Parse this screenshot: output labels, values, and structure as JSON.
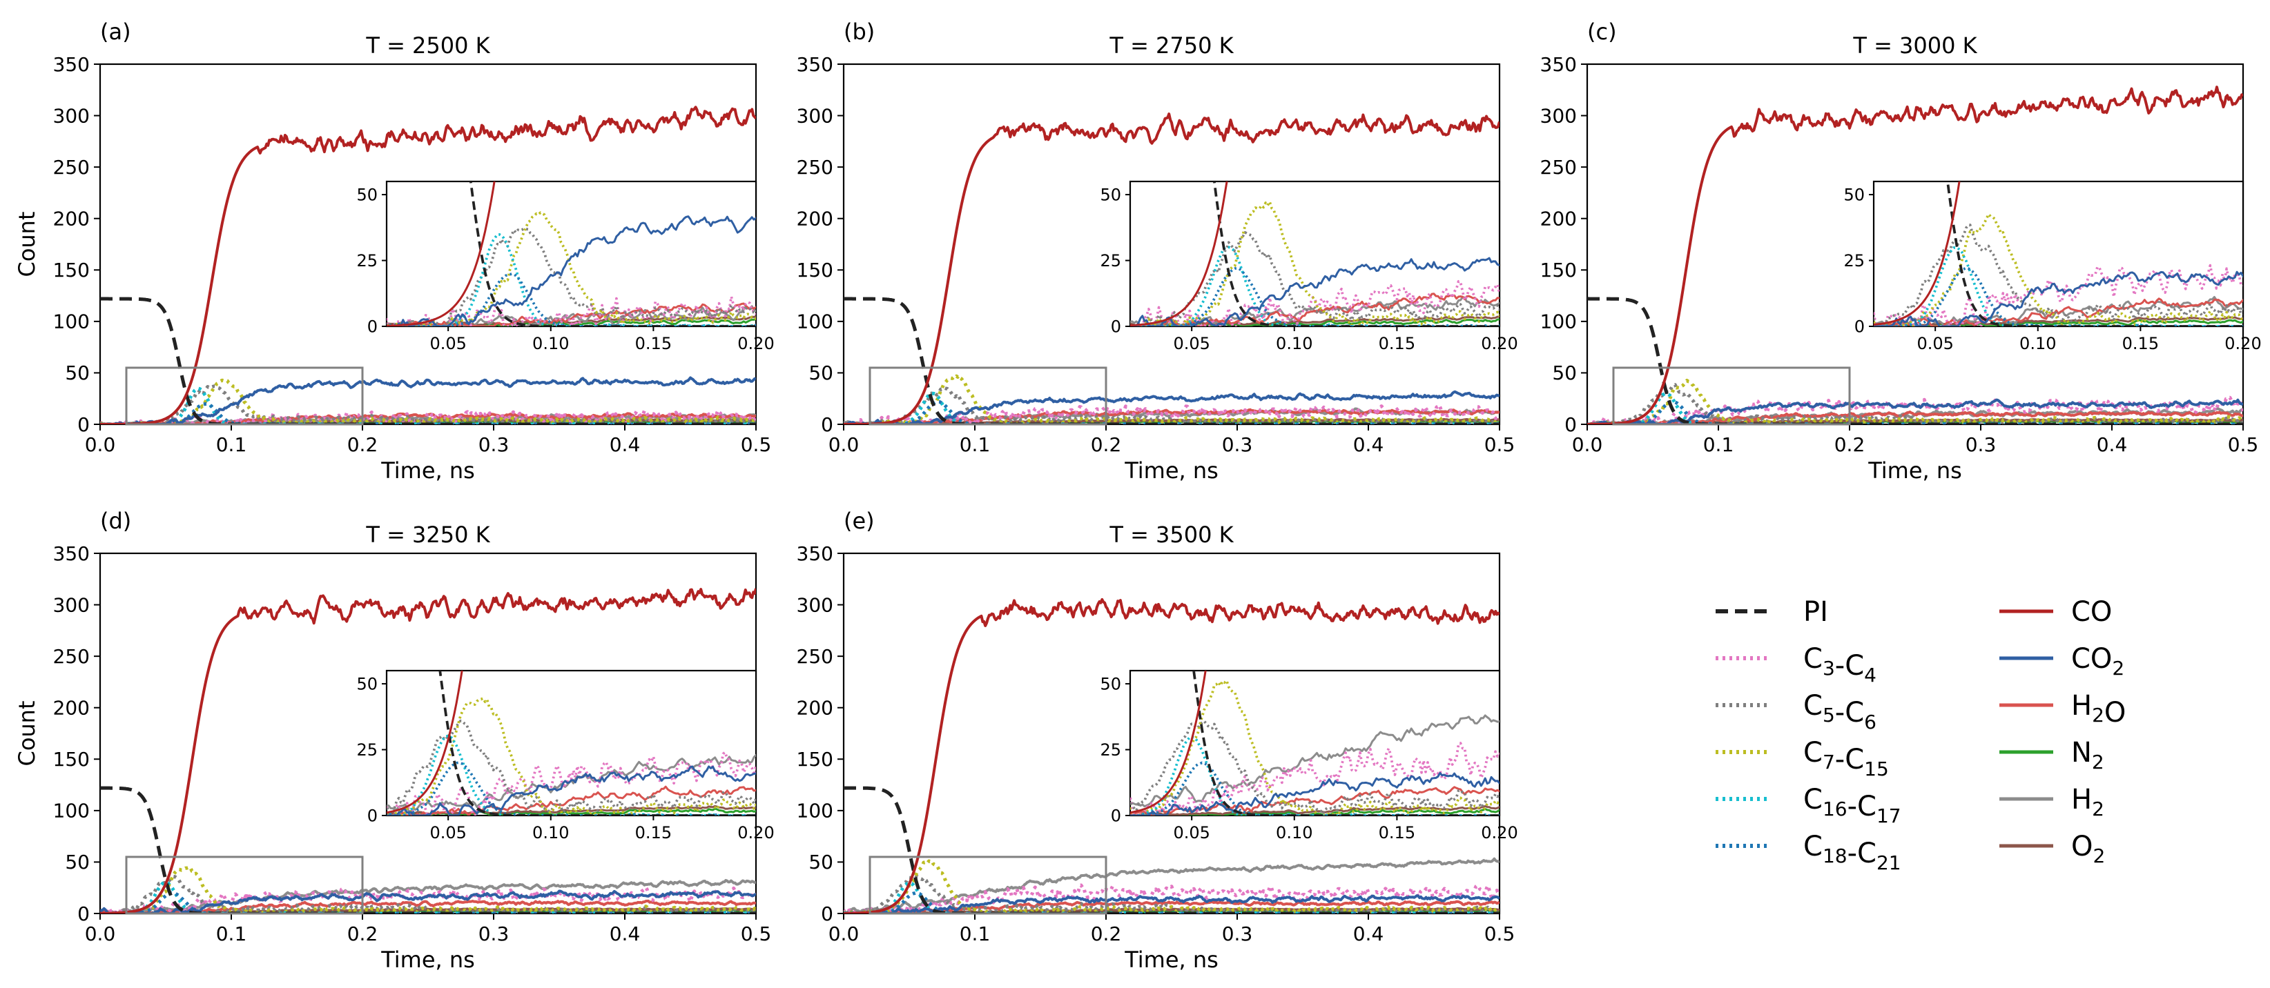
{
  "colors": {
    "PI": "#222222",
    "C3-C4": "#e377c2",
    "C5-C6": "#7f7f7f",
    "C7-C15": "#bcbd22",
    "C16-C17": "#17becf",
    "C18-C21": "#1f77b4",
    "CO": "#b22222",
    "CO2": "#2f5fa3",
    "H2O": "#d9534f",
    "N2": "#2ca02c",
    "H2": "#8c8c8c",
    "O2": "#8c564b",
    "zoom_box": "#808080"
  },
  "chart_data": [
    {
      "id": "a",
      "panel_label": "(a)",
      "title": "T = 2500 K",
      "type": "line",
      "xlabel": "Time, ns",
      "ylabel": "Count",
      "xlim": [
        0,
        0.5
      ],
      "ylim": [
        0,
        350
      ],
      "xticks": [
        "0.0",
        "0.1",
        "0.2",
        "0.3",
        "0.4",
        "0.5"
      ],
      "yticks": [
        "0",
        "50",
        "100",
        "150",
        "200",
        "250",
        "300",
        "350"
      ],
      "zoom_region": {
        "x": [
          0.02,
          0.2
        ],
        "y": [
          0,
          55
        ]
      },
      "inset": {
        "xlim": [
          0.02,
          0.2
        ],
        "ylim": [
          0,
          55
        ],
        "xticks": [
          "0.05",
          "0.10",
          "0.15",
          "0.20"
        ],
        "yticks": [
          "0",
          "25",
          "50"
        ]
      },
      "params": {
        "pi_drop": 0.06,
        "pi_start": 122,
        "co_start": 0.06,
        "co_rise": 0.08,
        "co_plateau": 275,
        "co_end": 300,
        "co2_level": 38,
        "co2_end": 42,
        "h2o": 8,
        "h2": 6,
        "c34": 7,
        "c56_peak": 35,
        "c56_t": 0.085,
        "c715_peak": 42,
        "c715_t": 0.095,
        "c1617_peak": 35,
        "c1617_t": 0.075,
        "c1821_peak": 20,
        "c1821_t": 0.08
      }
    },
    {
      "id": "b",
      "panel_label": "(b)",
      "title": "T = 2750 K",
      "type": "line",
      "xlabel": "Time, ns",
      "ylabel": "",
      "xlim": [
        0,
        0.5
      ],
      "ylim": [
        0,
        350
      ],
      "xticks": [
        "0.0",
        "0.1",
        "0.2",
        "0.3",
        "0.4",
        "0.5"
      ],
      "yticks": [
        "0",
        "50",
        "100",
        "150",
        "200",
        "250",
        "300",
        "350"
      ],
      "zoom_region": {
        "x": [
          0.02,
          0.2
        ],
        "y": [
          0,
          55
        ]
      },
      "inset": {
        "xlim": [
          0.02,
          0.2
        ],
        "ylim": [
          0,
          55
        ],
        "xticks": [
          "0.05",
          "0.10",
          "0.15",
          "0.20"
        ],
        "yticks": [
          "0",
          "25",
          "50"
        ]
      },
      "params": {
        "pi_drop": 0.06,
        "pi_start": 122,
        "co_start": 0.055,
        "co_rise": 0.07,
        "co_plateau": 285,
        "co_end": 290,
        "co2_level": 22,
        "co2_end": 28,
        "h2o": 12,
        "h2": 10,
        "c34": 12,
        "c56_peak": 32,
        "c56_t": 0.075,
        "c715_peak": 45,
        "c715_t": 0.085,
        "c1617_peak": 30,
        "c1617_t": 0.068,
        "c1821_peak": 22,
        "c1821_t": 0.072
      }
    },
    {
      "id": "c",
      "panel_label": "(c)",
      "title": "T = 3000 K",
      "type": "line",
      "xlabel": "Time, ns",
      "ylabel": "",
      "xlim": [
        0,
        0.5
      ],
      "ylim": [
        0,
        350
      ],
      "xticks": [
        "0.0",
        "0.1",
        "0.2",
        "0.3",
        "0.4",
        "0.5"
      ],
      "yticks": [
        "0",
        "50",
        "100",
        "150",
        "200",
        "250",
        "300",
        "350"
      ],
      "zoom_region": {
        "x": [
          0.02,
          0.2
        ],
        "y": [
          0,
          55
        ]
      },
      "inset": {
        "xlim": [
          0.02,
          0.2
        ],
        "ylim": [
          0,
          55
        ],
        "xticks": [
          "0.05",
          "0.10",
          "0.15",
          "0.20"
        ],
        "yticks": [
          "0",
          "25",
          "50"
        ]
      },
      "params": {
        "pi_drop": 0.055,
        "pi_start": 122,
        "co_start": 0.05,
        "co_rise": 0.065,
        "co_plateau": 295,
        "co_end": 320,
        "co2_level": 18,
        "co2_end": 20,
        "h2o": 10,
        "h2": 10,
        "c34": 18,
        "c56_peak": 35,
        "c56_t": 0.065,
        "c715_peak": 40,
        "c715_t": 0.075,
        "c1617_peak": 30,
        "c1617_t": 0.06,
        "c1821_peak": 22,
        "c1821_t": 0.065
      }
    },
    {
      "id": "d",
      "panel_label": "(d)",
      "title": "T = 3250 K",
      "type": "line",
      "xlabel": "Time, ns",
      "ylabel": "Count",
      "xlim": [
        0,
        0.5
      ],
      "ylim": [
        0,
        350
      ],
      "xticks": [
        "0.0",
        "0.1",
        "0.2",
        "0.3",
        "0.4",
        "0.5"
      ],
      "yticks": [
        "0",
        "50",
        "100",
        "150",
        "200",
        "250",
        "300",
        "350"
      ],
      "zoom_region": {
        "x": [
          0.02,
          0.2
        ],
        "y": [
          0,
          55
        ]
      },
      "inset": {
        "xlim": [
          0.02,
          0.2
        ],
        "ylim": [
          0,
          55
        ],
        "xticks": [
          "0.05",
          "0.10",
          "0.15",
          "0.20"
        ],
        "yticks": [
          "0",
          "25",
          "50"
        ]
      },
      "params": {
        "pi_drop": 0.045,
        "pi_start": 122,
        "co_start": 0.045,
        "co_rise": 0.06,
        "co_plateau": 295,
        "co_end": 310,
        "co2_level": 15,
        "co2_end": 18,
        "h2o": 10,
        "h2": 25,
        "c34": 18,
        "c56_peak": 33,
        "c56_t": 0.055,
        "c715_peak": 45,
        "c715_t": 0.065,
        "c1617_peak": 30,
        "c1617_t": 0.05,
        "c1821_peak": 20,
        "c1821_t": 0.055
      }
    },
    {
      "id": "e",
      "panel_label": "(e)",
      "title": "T = 3500 K",
      "type": "line",
      "xlabel": "Time, ns",
      "ylabel": "",
      "xlim": [
        0,
        0.5
      ],
      "ylim": [
        0,
        350
      ],
      "xticks": [
        "0.0",
        "0.1",
        "0.2",
        "0.3",
        "0.4",
        "0.5"
      ],
      "yticks": [
        "0",
        "50",
        "100",
        "150",
        "200",
        "250",
        "300",
        "350"
      ],
      "zoom_region": {
        "x": [
          0.02,
          0.2
        ],
        "y": [
          0,
          55
        ]
      },
      "inset": {
        "xlim": [
          0.02,
          0.2
        ],
        "ylim": [
          0,
          55
        ],
        "xticks": [
          "0.05",
          "0.10",
          "0.15",
          "0.20"
        ],
        "yticks": [
          "0",
          "25",
          "50"
        ]
      },
      "params": {
        "pi_drop": 0.05,
        "pi_start": 122,
        "co_start": 0.045,
        "co_rise": 0.055,
        "co_plateau": 295,
        "co_end": 290,
        "co2_level": 12,
        "co2_end": 15,
        "h2o": 10,
        "h2": 42,
        "c34": 20,
        "c56_peak": 35,
        "c56_t": 0.055,
        "c715_peak": 50,
        "c715_t": 0.065,
        "c1617_peak": 30,
        "c1617_t": 0.05,
        "c1821_peak": 20,
        "c1821_t": 0.055
      }
    }
  ],
  "legend": {
    "left": [
      {
        "key": "PI",
        "base": "PI",
        "sub1": "",
        "mid": "",
        "base2": "",
        "sub2": "",
        "style": "dashed"
      },
      {
        "key": "C3-C4",
        "base": "C",
        "sub1": "3",
        "mid": "-C",
        "base2": "",
        "sub2": "4",
        "style": "dotted"
      },
      {
        "key": "C5-C6",
        "base": "C",
        "sub1": "5",
        "mid": "-C",
        "base2": "",
        "sub2": "6",
        "style": "dotted"
      },
      {
        "key": "C7-C15",
        "base": "C",
        "sub1": "7",
        "mid": "-C",
        "base2": "",
        "sub2": "15",
        "style": "dotted"
      },
      {
        "key": "C16-C17",
        "base": "C",
        "sub1": "16",
        "mid": "-C",
        "base2": "",
        "sub2": "17",
        "style": "dotted"
      },
      {
        "key": "C18-C21",
        "base": "C",
        "sub1": "18",
        "mid": "-C",
        "base2": "",
        "sub2": "21",
        "style": "dotted"
      }
    ],
    "right": [
      {
        "key": "CO",
        "base": "CO",
        "sub1": "",
        "mid": "",
        "base2": "",
        "sub2": "",
        "style": "solid"
      },
      {
        "key": "CO2",
        "base": "CO",
        "sub1": "2",
        "mid": "",
        "base2": "",
        "sub2": "",
        "style": "solid"
      },
      {
        "key": "H2O",
        "base": "H",
        "sub1": "2",
        "mid": "O",
        "base2": "",
        "sub2": "",
        "style": "solid"
      },
      {
        "key": "N2",
        "base": "N",
        "sub1": "2",
        "mid": "",
        "base2": "",
        "sub2": "",
        "style": "solid"
      },
      {
        "key": "H2",
        "base": "H",
        "sub1": "2",
        "mid": "",
        "base2": "",
        "sub2": "",
        "style": "solid"
      },
      {
        "key": "O2",
        "base": "O",
        "sub1": "2",
        "mid": "",
        "base2": "",
        "sub2": "",
        "style": "solid"
      }
    ]
  }
}
